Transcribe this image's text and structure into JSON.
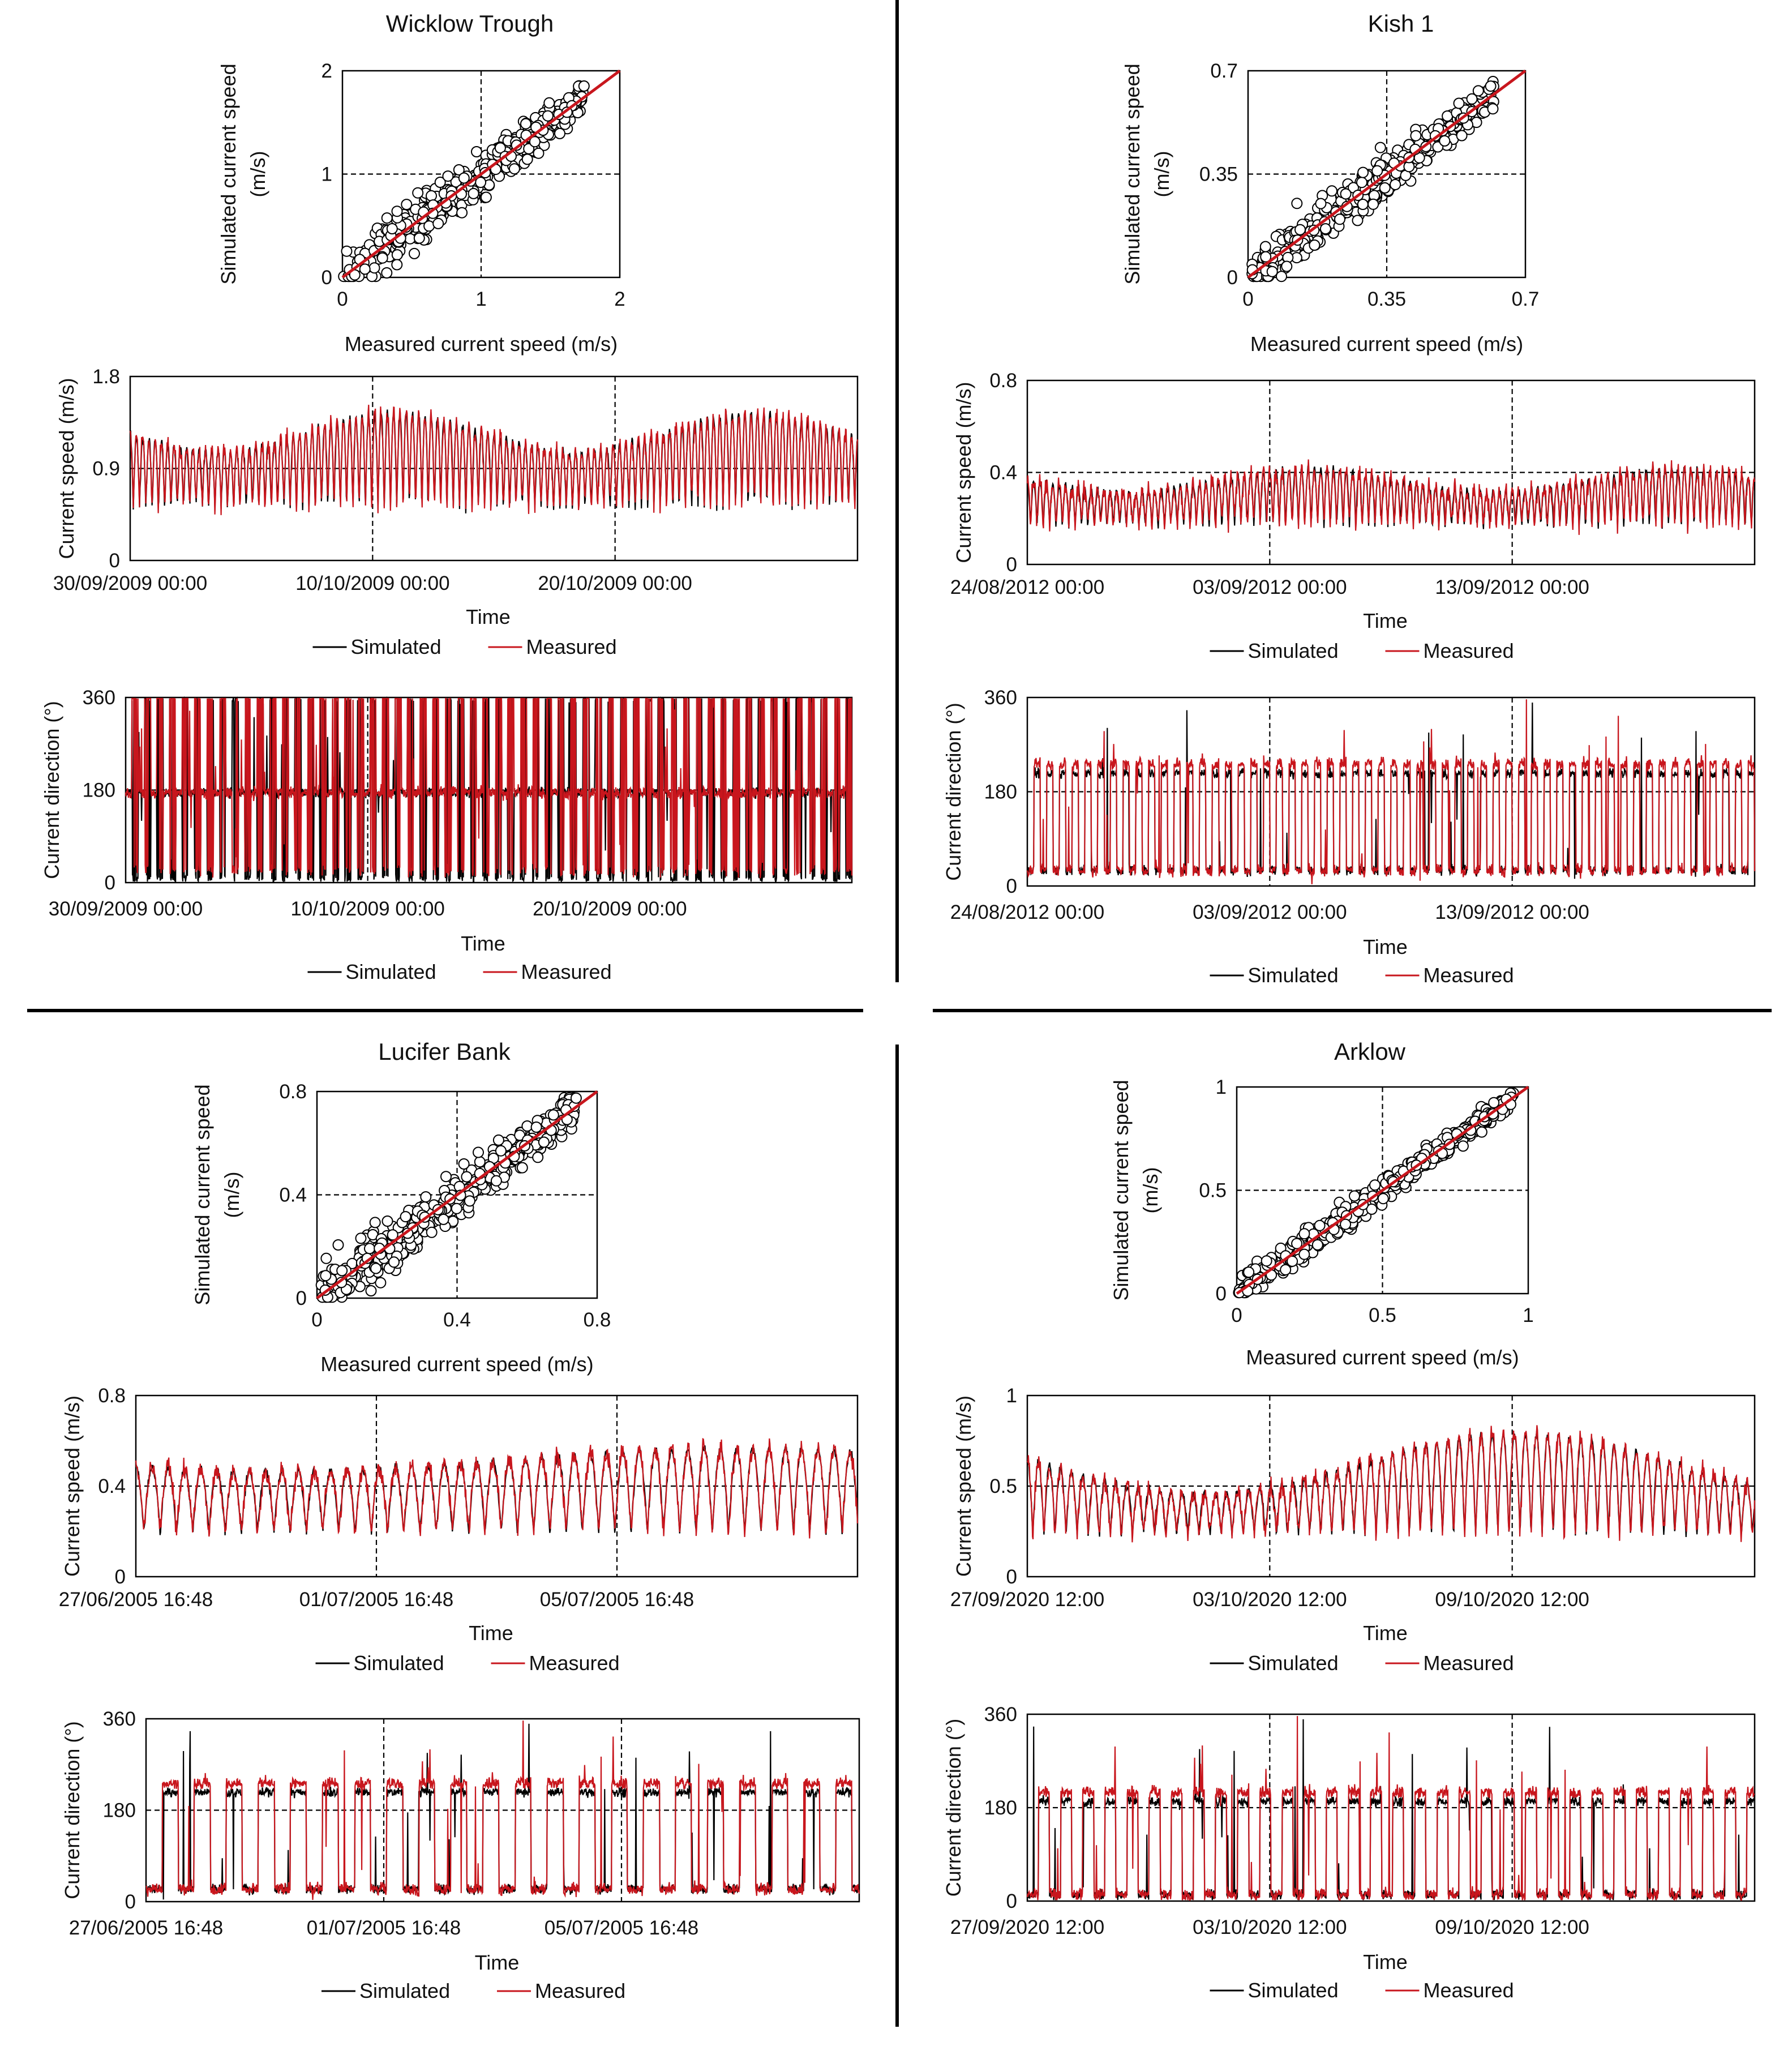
{
  "legend": {
    "simulated": "Simulated",
    "measured": "Measured",
    "simulated_color": "#000000",
    "measured_color": "#c8161d"
  },
  "scatter_labels": {
    "xlabel": "Measured current speed (m/s)",
    "ylabel_line1": "Simulated current speed",
    "ylabel_line2": "(m/s)"
  },
  "series_labels": {
    "time_label": "Time",
    "speed_label": "Current speed (m/s)",
    "direction_label": "Current direction (°)"
  },
  "chart_data": [
    {
      "panel": "top-left",
      "title": "Wicklow Trough",
      "scatter": {
        "type": "scatter",
        "xlim": [
          0,
          2
        ],
        "ylim": [
          0,
          2
        ],
        "xticks": [
          "0",
          "1",
          "2"
        ],
        "yticks": [
          "0",
          "1",
          "2"
        ],
        "spread": 0.12,
        "x_max": 1.75,
        "one_to_one_line": true
      },
      "speed": {
        "type": "line",
        "ylim": [
          0,
          1.8
        ],
        "yticks": [
          "0",
          "0.9",
          "1.8"
        ],
        "xticks": [
          "30/09/2009 00:00",
          "10/10/2009 00:00",
          "20/10/2009 00:00"
        ],
        "days": 30,
        "tide_base": 0.92,
        "tide_amp": [
          0.45,
          0.75
        ],
        "spring_neap_period_days": 14.8
      },
      "direction": {
        "type": "line",
        "ylim": [
          0,
          360
        ],
        "yticks": [
          "0",
          "180",
          "360"
        ],
        "xticks": [
          "30/09/2009 00:00",
          "10/10/2009 00:00",
          "20/10/2009 00:00"
        ],
        "flood_deg": 175,
        "ebb_deg": 355
      }
    },
    {
      "panel": "top-right",
      "title": "Kish 1",
      "scatter": {
        "type": "scatter",
        "xlim": [
          0,
          0.7
        ],
        "ylim": [
          0,
          0.7
        ],
        "xticks": [
          "0",
          "0.35",
          "0.7"
        ],
        "yticks": [
          "0",
          "0.35",
          "0.7"
        ],
        "spread": 0.12,
        "x_max": 0.62,
        "one_to_one_line": true
      },
      "speed": {
        "type": "line",
        "ylim": [
          0,
          0.8
        ],
        "yticks": [
          "0",
          "0.4",
          "0.8"
        ],
        "xticks": [
          "24/08/2012 00:00",
          "03/09/2012 00:00",
          "13/09/2012 00:00"
        ],
        "days": 29.5,
        "tide_base": 0.3,
        "tide_amp": [
          0.12,
          0.2
        ],
        "spring_neap_period_days": 14.8
      },
      "direction": {
        "type": "line",
        "ylim": [
          0,
          360
        ],
        "yticks": [
          "0",
          "180",
          "360"
        ],
        "xticks": [
          "24/08/2012 00:00",
          "03/09/2012 00:00",
          "13/09/2012 00:00"
        ],
        "flood_deg": 30,
        "ebb_deg": 215
      }
    },
    {
      "panel": "bottom-left",
      "title": "Lucifer Bank",
      "scatter": {
        "type": "scatter",
        "xlim": [
          0,
          0.8
        ],
        "ylim": [
          0,
          0.8
        ],
        "xticks": [
          "0",
          "0.4",
          "0.8"
        ],
        "yticks": [
          "0",
          "0.4",
          "0.8"
        ],
        "spread": 0.13,
        "x_max": 0.74,
        "one_to_one_line": true
      },
      "speed": {
        "type": "line",
        "ylim": [
          0,
          0.8
        ],
        "yticks": [
          "0",
          "0.4",
          "0.8"
        ],
        "xticks": [
          "27/06/2005 16:48",
          "01/07/2005 16:48",
          "05/07/2005 16:48"
        ],
        "days": 11.5,
        "tide_base": 0.35,
        "tide_amp": [
          0.22,
          0.3
        ],
        "spring_neap_period_days": 14.8
      },
      "direction": {
        "type": "line",
        "ylim": [
          0,
          360
        ],
        "yticks": [
          "0",
          "180",
          "360"
        ],
        "xticks": [
          "27/06/2005 16:48",
          "01/07/2005 16:48",
          "05/07/2005 16:48"
        ],
        "flood_deg": 25,
        "ebb_deg": 215
      }
    },
    {
      "panel": "bottom-right",
      "title": "Arklow",
      "scatter": {
        "type": "scatter",
        "xlim": [
          0,
          1
        ],
        "ylim": [
          0,
          1
        ],
        "xticks": [
          "0",
          "0.5",
          "1"
        ],
        "yticks": [
          "0",
          "0.5",
          "1"
        ],
        "spread": 0.07,
        "x_max": 0.95,
        "one_to_one_line": true
      },
      "speed": {
        "type": "line",
        "ylim": [
          0,
          1
        ],
        "yticks": [
          "0",
          "0.5",
          "1"
        ],
        "xticks": [
          "27/09/2020 12:00",
          "03/10/2020 12:00",
          "09/10/2020 12:00"
        ],
        "days": 17,
        "tide_base": 0.42,
        "tide_amp": [
          0.18,
          0.45
        ],
        "spring_neap_period_days": 14.8
      },
      "direction": {
        "type": "line",
        "ylim": [
          0,
          360
        ],
        "yticks": [
          "0",
          "180",
          "360"
        ],
        "xticks": [
          "27/09/2020 12:00",
          "03/10/2020 12:00",
          "09/10/2020 12:00"
        ],
        "flood_deg": 12,
        "ebb_deg": 192
      }
    }
  ]
}
